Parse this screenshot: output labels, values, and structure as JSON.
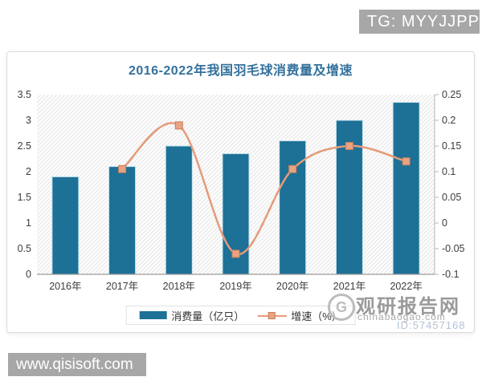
{
  "overlay": {
    "tg_badge": "TG: MYYJJPP",
    "site_badge": "www.qisisoft.com"
  },
  "chart_data": {
    "type": "bar",
    "title": "2016-2022年我国羽毛球消费量及增速",
    "categories": [
      "2016年",
      "2017年",
      "2018年",
      "2019年",
      "2020年",
      "2021年",
      "2022年"
    ],
    "series": [
      {
        "name": "消费量（亿只）",
        "type": "bar",
        "axis": "left",
        "color": "#1d7096",
        "values": [
          1.9,
          2.1,
          2.5,
          2.35,
          2.6,
          3.0,
          3.35
        ]
      },
      {
        "name": "增速（%）",
        "type": "line",
        "axis": "right",
        "color": "#e59b7a",
        "marker_fill": "#e7a383",
        "marker_stroke": "#c97f58",
        "values": [
          null,
          0.105,
          0.19,
          -0.06,
          0.105,
          0.15,
          0.12
        ]
      }
    ],
    "left_axis": {
      "min": 0,
      "max": 3.5,
      "ticks": [
        "0",
        "0.5",
        "1",
        "1.5",
        "2",
        "2.5",
        "3",
        "3.5"
      ]
    },
    "right_axis": {
      "min": -0.1,
      "max": 0.25,
      "ticks": [
        "-0.1",
        "-0.05",
        "0",
        "0.05",
        "0.1",
        "0.15",
        "0.2",
        "0.25"
      ]
    },
    "legend_position": "bottom",
    "grid": false,
    "plot_background": "diagonal-hatch"
  },
  "watermark": {
    "brand": "观研报告网",
    "domain": "chinabaogao.com",
    "id_text": "ID:57457168"
  }
}
